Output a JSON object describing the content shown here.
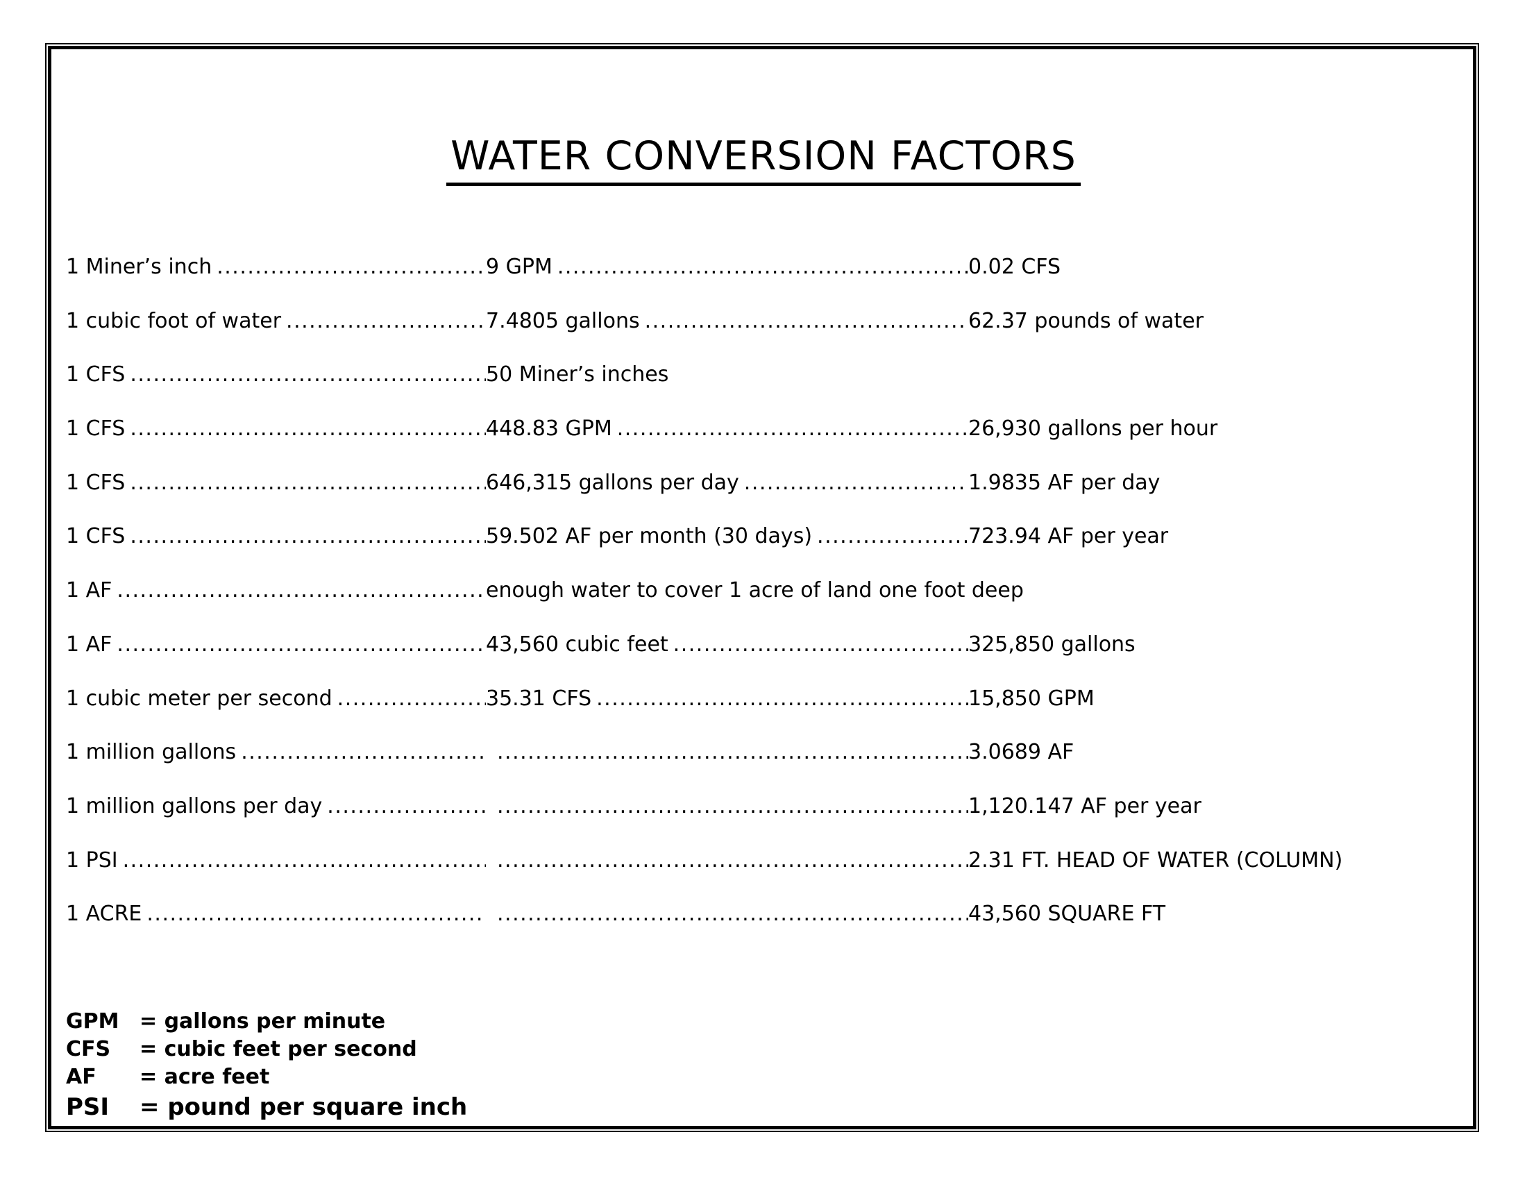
{
  "page": {
    "title": "WATER CONVERSION FACTORS"
  },
  "table": {
    "rows": [
      {
        "label": "1 Miner’s inch",
        "mid": "9 GPM",
        "right": "0.02 CFS"
      },
      {
        "label": "1 cubic foot of water",
        "mid": "7.4805 gallons",
        "right": "62.37 pounds of water"
      },
      {
        "label": "1 CFS",
        "mid": "50 Miner’s inches",
        "right": ""
      },
      {
        "label": "1 CFS",
        "mid": "448.83 GPM",
        "right": "26,930 gallons per hour"
      },
      {
        "label": "1 CFS",
        "mid": "646,315 gallons per day",
        "right": "1.9835 AF per day"
      },
      {
        "label": "1 CFS",
        "mid": "59.502 AF per month (30 days)",
        "right": "723.94 AF per year"
      },
      {
        "label": "1 AF",
        "mid": "enough water to cover 1 acre of land one foot deep",
        "right": ""
      },
      {
        "label": "1 AF",
        "mid": "43,560 cubic feet",
        "right": "325,850 gallons"
      },
      {
        "label": "1 cubic meter per second",
        "mid": "35.31 CFS",
        "right": "15,850 GPM"
      },
      {
        "label": "1 million gallons",
        "mid": "",
        "right": "3.0689 AF"
      },
      {
        "label": "1 million gallons per day",
        "mid": "",
        "right": "1,120.147 AF per year"
      },
      {
        "label": "1 PSI",
        "mid": "",
        "right": "2.31 FT. HEAD OF WATER (COLUMN)"
      },
      {
        "label": "1 ACRE",
        "mid": "",
        "right": "43,560 SQUARE FT"
      }
    ]
  },
  "legend": {
    "items": [
      {
        "abbr": "GPM",
        "definition": "= gallons per minute"
      },
      {
        "abbr": "CFS",
        "definition": "= cubic feet per second"
      },
      {
        "abbr": "AF",
        "definition": "= acre feet"
      },
      {
        "abbr": "PSI",
        "definition": "= pound per square inch"
      }
    ]
  }
}
